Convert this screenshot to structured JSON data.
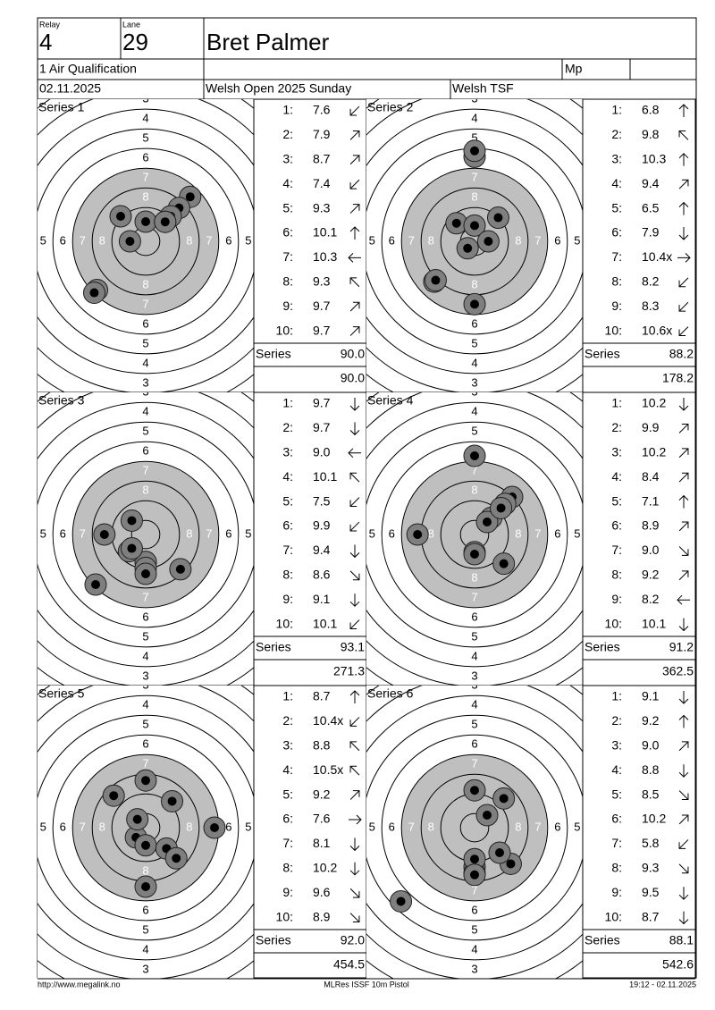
{
  "header": {
    "relay_label": "Relay",
    "relay": "4",
    "lane_label": "Lane",
    "lane": "29",
    "name": "Bret Palmer",
    "event": "1 Air Qualification",
    "mp": "Mp",
    "date": "02.11.2025",
    "competition": "Welsh Open 2025 Sunday",
    "club": "Welsh TSF"
  },
  "target": {
    "ring_labels": [
      "3",
      "4",
      "5",
      "6",
      "7",
      "8"
    ]
  },
  "series": [
    {
      "label": "Series 1",
      "shots": [
        {
          "no": "1:",
          "score": "7.6"
        },
        {
          "no": "2:",
          "score": "7.9"
        },
        {
          "no": "3:",
          "score": "8.7"
        },
        {
          "no": "4:",
          "score": "7.4"
        },
        {
          "no": "5:",
          "score": "9.3"
        },
        {
          "no": "6:",
          "score": "10.1"
        },
        {
          "no": "7:",
          "score": "10.3"
        },
        {
          "no": "8:",
          "score": "9.3"
        },
        {
          "no": "9:",
          "score": "9.7"
        },
        {
          "no": "10:",
          "score": "9.7"
        }
      ],
      "total_label": "Series",
      "total": "90.0",
      "cumulative": "90.0"
    },
    {
      "label": "Series 2",
      "shots": [
        {
          "no": "1:",
          "score": "6.8"
        },
        {
          "no": "2:",
          "score": "9.8"
        },
        {
          "no": "3:",
          "score": "10.3"
        },
        {
          "no": "4:",
          "score": "9.4"
        },
        {
          "no": "5:",
          "score": "6.5"
        },
        {
          "no": "6:",
          "score": "7.9"
        },
        {
          "no": "7:",
          "score": "10.4x"
        },
        {
          "no": "8:",
          "score": "8.2"
        },
        {
          "no": "9:",
          "score": "8.3"
        },
        {
          "no": "10:",
          "score": "10.6x"
        }
      ],
      "total_label": "Series",
      "total": "88.2",
      "cumulative": "178.2"
    },
    {
      "label": "Series 3",
      "shots": [
        {
          "no": "1:",
          "score": "9.7"
        },
        {
          "no": "2:",
          "score": "9.7"
        },
        {
          "no": "3:",
          "score": "9.0"
        },
        {
          "no": "4:",
          "score": "10.1"
        },
        {
          "no": "5:",
          "score": "7.5"
        },
        {
          "no": "6:",
          "score": "9.9"
        },
        {
          "no": "7:",
          "score": "9.4"
        },
        {
          "no": "8:",
          "score": "8.6"
        },
        {
          "no": "9:",
          "score": "9.1"
        },
        {
          "no": "10:",
          "score": "10.1"
        }
      ],
      "total_label": "Series",
      "total": "93.1",
      "cumulative": "271.3"
    },
    {
      "label": "Series 4",
      "shots": [
        {
          "no": "1:",
          "score": "10.2"
        },
        {
          "no": "2:",
          "score": "9.9"
        },
        {
          "no": "3:",
          "score": "10.2"
        },
        {
          "no": "4:",
          "score": "8.4"
        },
        {
          "no": "5:",
          "score": "7.1"
        },
        {
          "no": "6:",
          "score": "8.9"
        },
        {
          "no": "7:",
          "score": "9.0"
        },
        {
          "no": "8:",
          "score": "9.2"
        },
        {
          "no": "9:",
          "score": "8.2"
        },
        {
          "no": "10:",
          "score": "10.1"
        }
      ],
      "total_label": "Series",
      "total": "91.2",
      "cumulative": "362.5"
    },
    {
      "label": "Series 5",
      "shots": [
        {
          "no": "1:",
          "score": "8.7"
        },
        {
          "no": "2:",
          "score": "10.4x"
        },
        {
          "no": "3:",
          "score": "8.8"
        },
        {
          "no": "4:",
          "score": "10.5x"
        },
        {
          "no": "5:",
          "score": "9.2"
        },
        {
          "no": "6:",
          "score": "7.6"
        },
        {
          "no": "7:",
          "score": "8.1"
        },
        {
          "no": "8:",
          "score": "10.2"
        },
        {
          "no": "9:",
          "score": "9.6"
        },
        {
          "no": "10:",
          "score": "8.9"
        }
      ],
      "total_label": "Series",
      "total": "92.0",
      "cumulative": "454.5"
    },
    {
      "label": "Series 6",
      "shots": [
        {
          "no": "1:",
          "score": "9.1"
        },
        {
          "no": "2:",
          "score": "9.2"
        },
        {
          "no": "3:",
          "score": "9.0"
        },
        {
          "no": "4:",
          "score": "8.8"
        },
        {
          "no": "5:",
          "score": "8.5"
        },
        {
          "no": "6:",
          "score": "10.2"
        },
        {
          "no": "7:",
          "score": "5.8"
        },
        {
          "no": "8:",
          "score": "9.3"
        },
        {
          "no": "9:",
          "score": "9.5"
        },
        {
          "no": "10:",
          "score": "8.7"
        }
      ],
      "total_label": "Series",
      "total": "88.1",
      "cumulative": "542.6"
    }
  ],
  "footer": {
    "left": "http://www.megalink.no",
    "center": "MLRes ISSF 10m Pistol",
    "right": "19:12 - 02.11.2025"
  }
}
